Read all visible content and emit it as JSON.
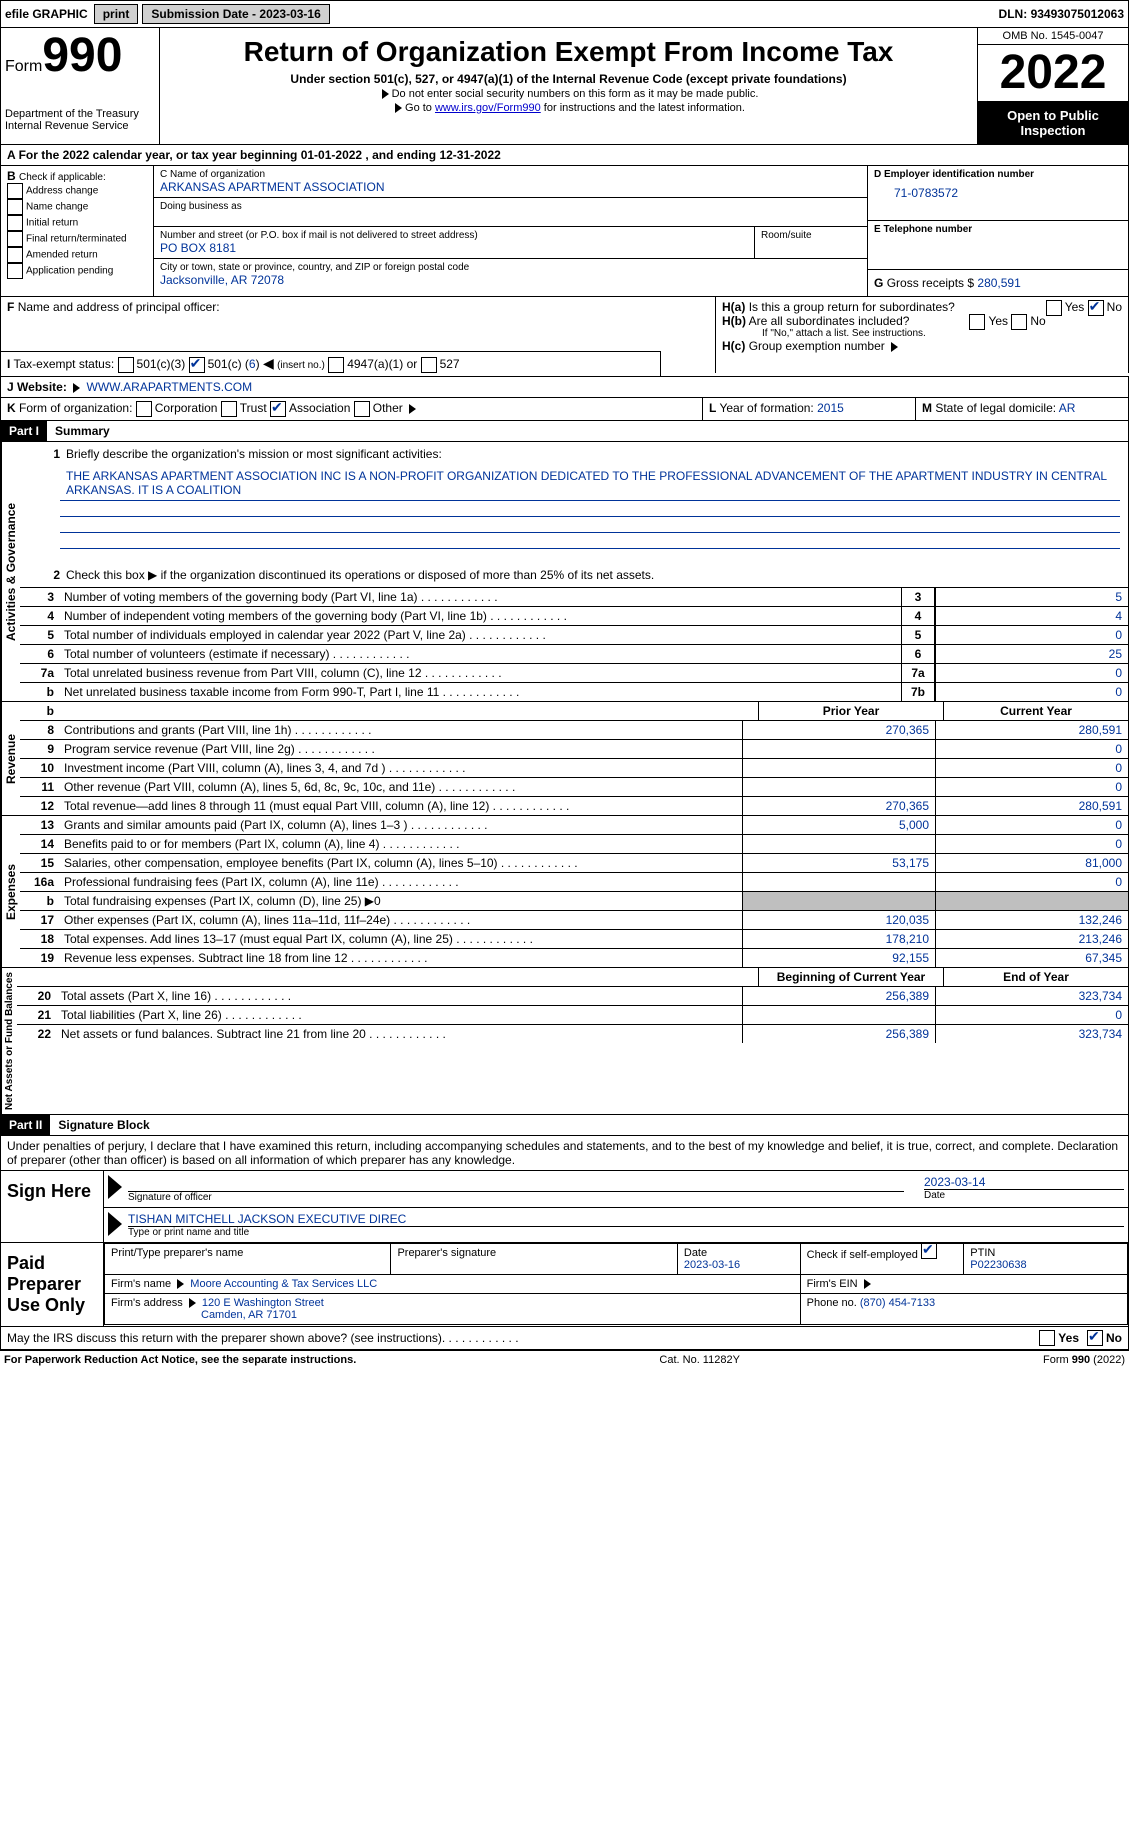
{
  "topbar": {
    "efile": "efile GRAPHIC",
    "print": "print",
    "sub_lbl": "Submission Date -",
    "sub_date": "2023-03-16",
    "dln_lbl": "DLN:",
    "dln": "93493075012063"
  },
  "header": {
    "form": "Form",
    "num": "990",
    "title": "Return of Organization Exempt From Income Tax",
    "sub": "Under section 501(c), 527, or 4947(a)(1) of the Internal Revenue Code (except private foundations)",
    "note1": "Do not enter social security numbers on this form as it may be made public.",
    "note2a": "Go to ",
    "note2link": "www.irs.gov/Form990",
    "note2b": " for instructions and the latest information.",
    "dept1": "Department of the Treasury",
    "dept2": "Internal Revenue Service",
    "omb": "OMB No. 1545-0047",
    "year": "2022",
    "otp": "Open to Public Inspection"
  },
  "period": {
    "label_a": "For the 2022 calendar year, or tax year beginning ",
    "begin": "01-01-2022",
    "label_b": " , and ending ",
    "end": "12-31-2022"
  },
  "boxA": {
    "hdr": "A",
    "b_lbl": "B",
    "check_lbl": "Check if applicable:",
    "opts": [
      "Address change",
      "Name change",
      "Initial return",
      "Final return/terminated",
      "Amended return",
      "Application pending"
    ]
  },
  "boxC": {
    "name_lbl": "C Name of organization",
    "name": "ARKANSAS APARTMENT ASSOCIATION",
    "dba_lbl": "Doing business as",
    "dba": "",
    "street_lbl": "Number and street (or P.O. box if mail is not delivered to street address)",
    "street": "PO BOX 8181",
    "room_lbl": "Room/suite",
    "city_lbl": "City or town, state or province, country, and ZIP or foreign postal code",
    "city": "Jacksonville, AR  72078"
  },
  "boxD": {
    "lbl": "D Employer identification number",
    "val": "71-0783572"
  },
  "boxE": {
    "lbl": "E Telephone number",
    "val": ""
  },
  "boxG": {
    "lbl": "G",
    "txt": "Gross receipts $",
    "val": "280,591"
  },
  "boxF": {
    "lbl": "F",
    "txt": "Name and address of principal officer:"
  },
  "boxH": {
    "a_lbl": "H(a)",
    "a_txt": "Is this a group return for subordinates?",
    "b_lbl": "H(b)",
    "b_txt": "Are all subordinates included?",
    "b_note": "If \"No,\" attach a list. See instructions.",
    "c_lbl": "H(c)",
    "c_txt": "Group exemption number",
    "yes": "Yes",
    "no": "No"
  },
  "boxI": {
    "lbl": "I",
    "txt": "Tax-exempt status:",
    "o1": "501(c)(3)",
    "o2a": "501(c) (",
    "o2b": "6",
    "o2c": ")",
    "o2d": "(insert no.)",
    "o3": "4947(a)(1) or",
    "o4": "527"
  },
  "boxJ": {
    "lbl": "J",
    "txt": "Website:",
    "val": "WWW.ARAPARTMENTS.COM"
  },
  "boxK": {
    "lbl": "K",
    "txt": "Form of organization:",
    "o1": "Corporation",
    "o2": "Trust",
    "o3": "Association",
    "o4": "Other"
  },
  "boxL": {
    "lbl": "L",
    "txt": "Year of formation:",
    "val": "2015"
  },
  "boxM": {
    "lbl": "M",
    "txt": "State of legal domicile:",
    "val": "AR"
  },
  "part1": {
    "hdr": "Part I",
    "title": "Summary"
  },
  "s1": {
    "l1a": "Briefly describe the organization's mission or most significant activities:",
    "l1b": "THE ARKANSAS APARTMENT ASSOCIATION INC IS A NON-PROFIT ORGANIZATION DEDICATED TO THE PROFESSIONAL ADVANCEMENT OF THE APARTMENT INDUSTRY IN CENTRAL ARKANSAS. IT IS A COALITION",
    "l2": "Check this box ▶    if the organization discontinued its operations or disposed of more than 25% of its net assets.",
    "rows": [
      {
        "n": "3",
        "d": "Number of voting members of the governing body (Part VI, line 1a)",
        "b": "3",
        "v": "5"
      },
      {
        "n": "4",
        "d": "Number of independent voting members of the governing body (Part VI, line 1b)",
        "b": "4",
        "v": "4"
      },
      {
        "n": "5",
        "d": "Total number of individuals employed in calendar year 2022 (Part V, line 2a)",
        "b": "5",
        "v": "0"
      },
      {
        "n": "6",
        "d": "Total number of volunteers (estimate if necessary)",
        "b": "6",
        "v": "25"
      },
      {
        "n": "7a",
        "d": "Total unrelated business revenue from Part VIII, column (C), line 12",
        "b": "7a",
        "v": "0"
      },
      {
        "n": "b",
        "d": "Net unrelated business taxable income from Form 990-T, Part I, line 11",
        "b": "7b",
        "v": "0"
      }
    ],
    "col_prior": "Prior Year",
    "col_cur": "Current Year",
    "rev": [
      {
        "n": "8",
        "d": "Contributions and grants (Part VIII, line 1h)",
        "p": "270,365",
        "c": "280,591"
      },
      {
        "n": "9",
        "d": "Program service revenue (Part VIII, line 2g)",
        "p": "",
        "c": "0"
      },
      {
        "n": "10",
        "d": "Investment income (Part VIII, column (A), lines 3, 4, and 7d )",
        "p": "",
        "c": "0"
      },
      {
        "n": "11",
        "d": "Other revenue (Part VIII, column (A), lines 5, 6d, 8c, 9c, 10c, and 11e)",
        "p": "",
        "c": "0"
      },
      {
        "n": "12",
        "d": "Total revenue—add lines 8 through 11 (must equal Part VIII, column (A), line 12)",
        "p": "270,365",
        "c": "280,591"
      }
    ],
    "exp": [
      {
        "n": "13",
        "d": "Grants and similar amounts paid (Part IX, column (A), lines 1–3 )",
        "p": "5,000",
        "c": "0"
      },
      {
        "n": "14",
        "d": "Benefits paid to or for members (Part IX, column (A), line 4)",
        "p": "",
        "c": "0"
      },
      {
        "n": "15",
        "d": "Salaries, other compensation, employee benefits (Part IX, column (A), lines 5–10)",
        "p": "53,175",
        "c": "81,000"
      },
      {
        "n": "16a",
        "d": "Professional fundraising fees (Part IX, column (A), line 11e)",
        "p": "",
        "c": "0"
      },
      {
        "n": "b",
        "d": "Total fundraising expenses (Part IX, column (D), line 25) ▶0",
        "p": "SHADED",
        "c": "SHADED"
      },
      {
        "n": "17",
        "d": "Other expenses (Part IX, column (A), lines 11a–11d, 11f–24e)",
        "p": "120,035",
        "c": "132,246"
      },
      {
        "n": "18",
        "d": "Total expenses. Add lines 13–17 (must equal Part IX, column (A), line 25)",
        "p": "178,210",
        "c": "213,246"
      },
      {
        "n": "19",
        "d": "Revenue less expenses. Subtract line 18 from line 12",
        "p": "92,155",
        "c": "67,345"
      }
    ],
    "col_boy": "Beginning of Current Year",
    "col_eoy": "End of Year",
    "net": [
      {
        "n": "20",
        "d": "Total assets (Part X, line 16)",
        "p": "256,389",
        "c": "323,734"
      },
      {
        "n": "21",
        "d": "Total liabilities (Part X, line 26)",
        "p": "",
        "c": "0"
      },
      {
        "n": "22",
        "d": "Net assets or fund balances. Subtract line 21 from line 20",
        "p": "256,389",
        "c": "323,734"
      }
    ],
    "vlabels": [
      "Activities & Governance",
      "Revenue",
      "Expenses",
      "Net Assets or Fund Balances"
    ]
  },
  "part2": {
    "hdr": "Part II",
    "title": "Signature Block"
  },
  "sig": {
    "decl": "Under penalties of perjury, I declare that I have examined this return, including accompanying schedules and statements, and to the best of my knowledge and belief, it is true, correct, and complete. Declaration of preparer (other than officer) is based on all information of which preparer has any knowledge.",
    "sign_here": "Sign Here",
    "sig_officer": "Signature of officer",
    "date_lbl": "Date",
    "date": "2023-03-14",
    "name": "TISHAN MITCHELL JACKSON",
    "title": "EXECUTIVE DIREC",
    "name_lbl": "Type or print name and title",
    "paid": "Paid Preparer Use Only",
    "pt_name_lbl": "Print/Type preparer's name",
    "pt_sig_lbl": "Preparer's signature",
    "pt_date_lbl": "Date",
    "pt_date": "2023-03-16",
    "pt_check_lbl": "Check       if self-employed",
    "ptin_lbl": "PTIN",
    "ptin": "P02230638",
    "firm_name_lbl": "Firm's name",
    "firm_name": "Moore Accounting & Tax Services LLC",
    "firm_ein_lbl": "Firm's EIN",
    "firm_addr_lbl": "Firm's address",
    "firm_addr1": "120 E Washington Street",
    "firm_addr2": "Camden, AR  71701",
    "phone_lbl": "Phone no.",
    "phone": "(870) 454-7133",
    "discuss": "May the IRS discuss this return with the preparer shown above? (see instructions)"
  },
  "footer": {
    "left": "For Paperwork Reduction Act Notice, see the separate instructions.",
    "mid": "Cat. No. 11282Y",
    "right": "Form 990 (2022)"
  }
}
